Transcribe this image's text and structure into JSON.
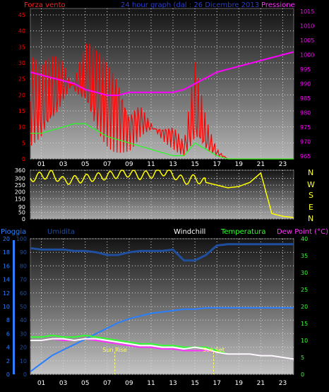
{
  "title": "24 hour graph (dal : 26 Dicembre 2013",
  "colors": {
    "background": "#000000",
    "wind": "#ff0000",
    "gust": "#22ff22",
    "pressure": "#ff00ff",
    "direction": "#ffff00",
    "humidity": "#1f4f9f",
    "rain": "#2a7fff",
    "temperature": "#33ff33",
    "dewpoint": "#ff33ff",
    "windchill": "#ffffff",
    "sun": "#ffff66",
    "grid": "#d8d8d8"
  },
  "x_ticks": [
    "01",
    "03",
    "05",
    "07",
    "09",
    "11",
    "13",
    "15",
    "17",
    "19",
    "21",
    "23"
  ],
  "chart_data": [
    {
      "type": "line",
      "title": "24 hour graph (dal : 26 Dicembre 2013",
      "ylabel_left": "Forza vento",
      "ylabel_right": "Pressione",
      "y_ticks": [
        "0",
        "5",
        "10",
        "15",
        "20",
        "25",
        "30",
        "35",
        "40",
        "45"
      ],
      "y2_ticks": [
        "965",
        "970",
        "975",
        "980",
        "985",
        "990",
        "995",
        "1000",
        "1005",
        "1010",
        "1015"
      ],
      "ylim": [
        0,
        47
      ],
      "y2lim": [
        964,
        1016
      ],
      "grid": true,
      "x": [
        0,
        1,
        2,
        3,
        4,
        5,
        6,
        7,
        8,
        9,
        10,
        11,
        12,
        13,
        14,
        15,
        16,
        17,
        18,
        19,
        20,
        21,
        22,
        23,
        24
      ],
      "series": [
        {
          "name": "Forza vento",
          "axis": "left",
          "values": [
            18,
            16,
            20,
            24,
            23,
            25,
            20,
            17,
            15,
            9,
            12,
            10,
            8,
            7,
            3,
            16,
            7,
            2,
            0,
            0,
            0,
            0,
            0,
            0,
            0
          ]
        },
        {
          "name": "gust",
          "axis": "left",
          "values": [
            8,
            8,
            9,
            10,
            11,
            11,
            9,
            7,
            6,
            5,
            4,
            3,
            2,
            1,
            1,
            5,
            3,
            1,
            0,
            0,
            0,
            0,
            0,
            0,
            0
          ]
        },
        {
          "name": "Pressione",
          "axis": "right",
          "values": [
            994,
            993,
            992,
            991,
            990,
            988,
            987,
            986,
            986,
            987,
            987,
            987,
            987,
            987,
            988,
            990,
            992,
            994,
            995,
            996,
            997,
            998,
            999,
            1000,
            1001
          ]
        }
      ]
    },
    {
      "type": "line",
      "ylabel_right": [
        "N",
        "W",
        "S",
        "E",
        "N"
      ],
      "y_ticks": [
        "0",
        "50",
        "90",
        "150",
        "200",
        "250",
        "300",
        "360"
      ],
      "ylim": [
        0,
        360
      ],
      "grid": true,
      "x": [
        0,
        1,
        2,
        3,
        4,
        5,
        6,
        7,
        8,
        9,
        10,
        11,
        12,
        13,
        14,
        15,
        16,
        17,
        18,
        19,
        20,
        21,
        22,
        23,
        24
      ],
      "series": [
        {
          "name": "Direzione vento",
          "values": [
            300,
            320,
            330,
            280,
            290,
            300,
            310,
            320,
            330,
            340,
            320,
            330,
            350,
            330,
            280,
            300,
            270,
            250,
            230,
            240,
            270,
            340,
            40,
            20,
            10
          ]
        }
      ]
    },
    {
      "type": "line",
      "labels": [
        "Pioggia",
        "Umidita",
        "Windchill",
        "Temperatura",
        "Dew Point (°C)"
      ],
      "annotations": [
        "Sun Rise",
        "Sun Set"
      ],
      "annotation_x": [
        7.7,
        16.7
      ],
      "y_ticks": [
        "0",
        "10",
        "20",
        "30",
        "40",
        "50",
        "60",
        "70",
        "80",
        "90",
        "100"
      ],
      "y_ticks_rain": [
        "0",
        "2",
        "4",
        "6",
        "8",
        "10",
        "12",
        "14",
        "16",
        "18",
        "20"
      ],
      "y2_ticks": [
        "0",
        "5",
        "10",
        "15",
        "20",
        "25",
        "30",
        "35",
        "40"
      ],
      "ylim": [
        0,
        100
      ],
      "y2lim": [
        0,
        40
      ],
      "grid": true,
      "x": [
        0,
        1,
        2,
        3,
        4,
        5,
        6,
        7,
        8,
        9,
        10,
        11,
        12,
        13,
        14,
        15,
        16,
        17,
        18,
        19,
        20,
        21,
        22,
        23,
        24
      ],
      "series": [
        {
          "name": "Umidita",
          "axis": "left",
          "values": [
            93,
            92,
            92,
            92,
            91,
            91,
            90,
            88,
            88,
            90,
            91,
            91,
            91,
            92,
            84,
            84,
            88,
            95,
            96,
            96,
            96,
            96,
            96,
            96,
            96
          ]
        },
        {
          "name": "Pioggia",
          "axis": "left",
          "values": [
            2,
            8,
            14,
            18,
            22,
            26,
            30,
            34,
            38,
            41,
            43,
            45,
            46,
            47,
            48,
            48,
            49,
            49,
            49,
            49,
            49,
            49,
            49,
            49,
            49
          ]
        },
        {
          "name": "Temperatura",
          "axis": "right",
          "values": [
            11,
            11,
            11.5,
            11,
            11,
            11.5,
            11,
            10.5,
            10,
            9.5,
            9,
            9,
            8.5,
            8.5,
            8,
            8,
            8,
            7,
            6,
            6,
            6,
            5.5,
            5.5,
            5,
            4.5
          ]
        },
        {
          "name": "Dew Point (°C)",
          "axis": "right",
          "values": [
            10,
            10,
            10.5,
            10,
            10,
            10.5,
            10,
            9.5,
            9,
            8.5,
            8,
            8,
            7.5,
            7.5,
            7,
            7,
            7,
            6.5,
            6,
            6,
            6,
            5.5,
            5.5,
            5,
            4.5
          ]
        },
        {
          "name": "Windchill",
          "axis": "right",
          "values": [
            10,
            10,
            10.5,
            10.5,
            10,
            10.5,
            10.5,
            10,
            9.5,
            9,
            8.5,
            8.5,
            8,
            8,
            7.5,
            8,
            7.5,
            6.5,
            6,
            6,
            6,
            5.5,
            5.5,
            5,
            4.5
          ]
        }
      ]
    }
  ]
}
